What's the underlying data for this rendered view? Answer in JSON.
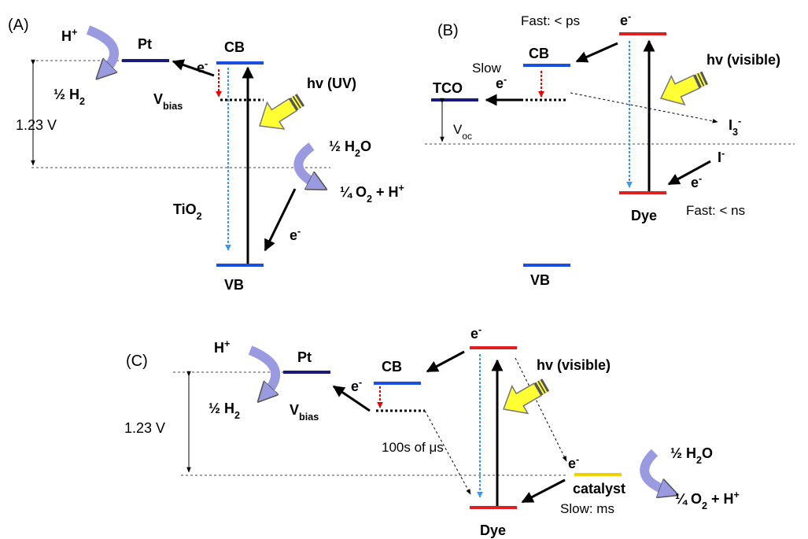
{
  "panel_a": {
    "label": "(A)",
    "h_plus": [
      "H",
      {
        "sup": "+"
      }
    ],
    "pt": "Pt",
    "cb": "CB",
    "e_cb": [
      "e",
      {
        "sup": "-"
      }
    ],
    "half_h2": [
      "½ H",
      {
        "sub": "2"
      }
    ],
    "vbias": [
      "V",
      {
        "sub": "bias"
      }
    ],
    "hv": "hv (UV)",
    "voltage": "1.23 V",
    "half_h2o": [
      "½ H",
      {
        "sub": "2"
      },
      "O"
    ],
    "quarter_o2": [
      "¼ O",
      {
        "sub": "2"
      },
      " + H",
      {
        "sup": "+"
      }
    ],
    "tio2": [
      "TiO",
      {
        "sub": "2"
      }
    ],
    "e_vb": [
      "e",
      {
        "sup": "-"
      }
    ],
    "vb": "VB"
  },
  "panel_b": {
    "label": "(B)",
    "fast_ps": "Fast: < ps",
    "e_dye": [
      "e",
      {
        "sup": "-"
      }
    ],
    "cb": "CB",
    "slow": "Slow",
    "hv": "hv (visible)",
    "tco": "TCO",
    "e_tco": [
      "e",
      {
        "sup": "-"
      }
    ],
    "i3": [
      "I",
      {
        "sub": "3"
      },
      {
        "sup": "-"
      }
    ],
    "voc": [
      "V",
      {
        "sub": "oc"
      }
    ],
    "i_minus": [
      "I",
      {
        "sup": "-"
      }
    ],
    "e_i": [
      "e",
      {
        "sup": "-"
      }
    ],
    "dye": "Dye",
    "fast_ns": "Fast: < ns",
    "vb": "VB"
  },
  "panel_c": {
    "label": "(C)",
    "h_plus": [
      "H",
      {
        "sup": "+"
      }
    ],
    "pt": "Pt",
    "cb": "CB",
    "e_dye": [
      "e",
      {
        "sup": "-"
      }
    ],
    "hv": "hv (visible)",
    "e_cb": [
      "e",
      {
        "sup": "-"
      }
    ],
    "half_h2": [
      "½ H",
      {
        "sub": "2"
      }
    ],
    "vbias": [
      "V",
      {
        "sub": "bias"
      }
    ],
    "voltage": "1.23 V",
    "time": "100s of μs",
    "e_cat": [
      "e",
      {
        "sup": "-"
      }
    ],
    "half_h2o": [
      "½ H",
      {
        "sub": "2"
      },
      "O"
    ],
    "catalyst": "catalyst",
    "slow_ms": "Slow: ms",
    "quarter_o2": [
      "¼ O",
      {
        "sub": "2"
      },
      " + H",
      {
        "sup": "+"
      }
    ],
    "dye": "Dye"
  }
}
